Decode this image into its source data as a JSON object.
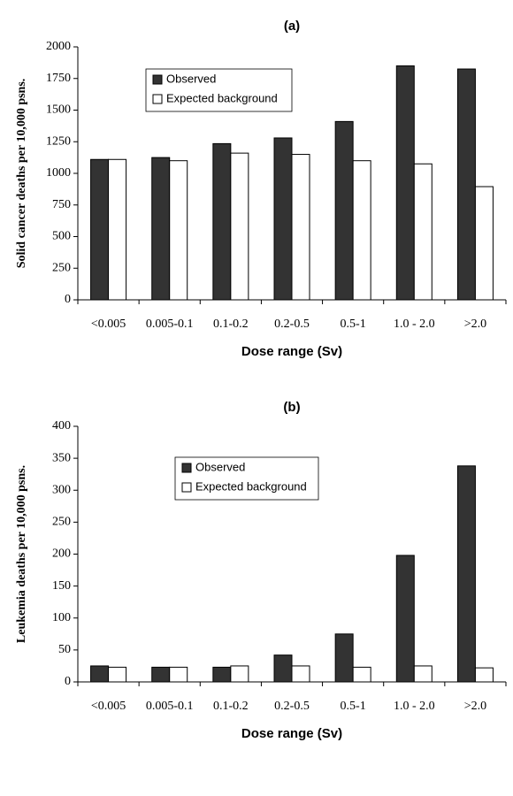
{
  "chart_data": [
    {
      "type": "bar",
      "title": "(a)",
      "xlabel": "Dose range (Sv)",
      "ylabel": "Solid cancer deaths per 10,000 psns.",
      "categories": [
        "<0.005",
        "0.005-0.1",
        "0.1-0.2",
        "0.2-0.5",
        "0.5-1",
        "1.0 - 2.0",
        ">2.0"
      ],
      "series": [
        {
          "name": "Observed",
          "color": "#333333",
          "values": [
            1110,
            1125,
            1235,
            1280,
            1410,
            1850,
            1825
          ]
        },
        {
          "name": "Expected background",
          "color": "#ffffff",
          "values": [
            1110,
            1100,
            1160,
            1150,
            1100,
            1075,
            895
          ]
        }
      ],
      "ylim": [
        0,
        2000
      ],
      "yticks": [
        0,
        250,
        500,
        750,
        1000,
        1250,
        1500,
        1750,
        2000
      ]
    },
    {
      "type": "bar",
      "title": "(b)",
      "xlabel": "Dose range (Sv)",
      "ylabel": "Leukemia deaths per 10,000 psns.",
      "categories": [
        "<0.005",
        "0.005-0.1",
        "0.1-0.2",
        "0.2-0.5",
        "0.5-1",
        "1.0 - 2.0",
        ">2.0"
      ],
      "series": [
        {
          "name": "Observed",
          "color": "#333333",
          "values": [
            25,
            23,
            23,
            42,
            75,
            198,
            338
          ]
        },
        {
          "name": "Expected background",
          "color": "#ffffff",
          "values": [
            23,
            23,
            25,
            25,
            23,
            25,
            22
          ]
        }
      ],
      "ylim": [
        0,
        400
      ],
      "yticks": [
        0,
        50,
        100,
        150,
        200,
        250,
        300,
        350,
        400
      ]
    }
  ]
}
